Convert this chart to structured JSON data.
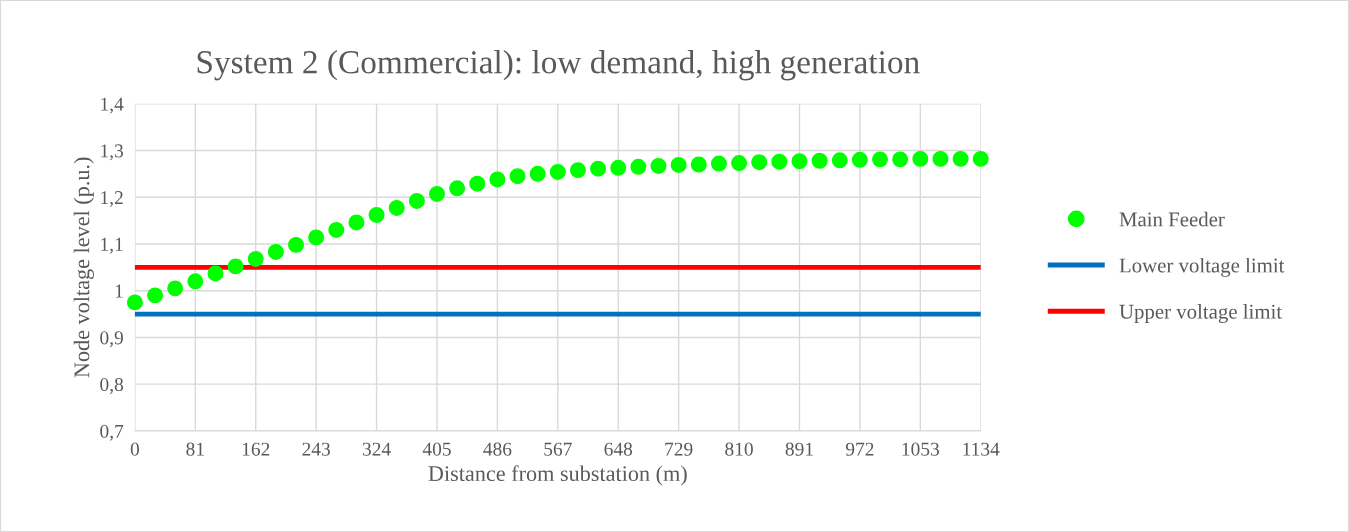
{
  "chart_data": {
    "type": "scatter",
    "title": "System 2 (Commercial): low demand, high generation",
    "xlabel": "Distance from substation (m)",
    "ylabel": "Node voltage level (p.u.)",
    "xlim": [
      0,
      1134
    ],
    "xticks": [
      0,
      81,
      162,
      243,
      324,
      405,
      486,
      567,
      648,
      729,
      810,
      891,
      972,
      1053,
      1134
    ],
    "ylim": [
      0.7,
      1.4
    ],
    "yticks": [
      {
        "value": 0.7,
        "label": "0,7"
      },
      {
        "value": 0.8,
        "label": "0,8"
      },
      {
        "value": 0.9,
        "label": "0,9"
      },
      {
        "value": 1.0,
        "label": "1"
      },
      {
        "value": 1.1,
        "label": "1,1"
      },
      {
        "value": 1.2,
        "label": "1,2"
      },
      {
        "value": 1.3,
        "label": "1,3"
      },
      {
        "value": 1.4,
        "label": "1,4"
      }
    ],
    "grid": true,
    "legend": "right",
    "series": [
      {
        "name": "Main Feeder",
        "marker": "circle",
        "color": "#00ff00",
        "x": [
          0,
          27,
          54,
          81,
          108,
          135,
          162,
          189,
          216,
          243,
          270,
          297,
          324,
          351,
          378,
          405,
          432,
          459,
          486,
          513,
          540,
          567,
          594,
          621,
          648,
          675,
          702,
          729,
          756,
          783,
          810,
          837,
          864,
          891,
          918,
          945,
          972,
          999,
          1026,
          1053,
          1080,
          1107,
          1134
        ],
        "values": [
          0.975,
          0.99,
          1.005,
          1.02,
          1.037,
          1.052,
          1.068,
          1.083,
          1.098,
          1.114,
          1.13,
          1.146,
          1.162,
          1.177,
          1.192,
          1.207,
          1.219,
          1.229,
          1.238,
          1.245,
          1.25,
          1.254,
          1.258,
          1.261,
          1.263,
          1.265,
          1.267,
          1.269,
          1.27,
          1.272,
          1.273,
          1.275,
          1.276,
          1.277,
          1.278,
          1.279,
          1.28,
          1.281,
          1.281,
          1.282,
          1.282,
          1.282,
          1.282
        ]
      },
      {
        "name": "Lower voltage limit",
        "type": "line",
        "marker": "none",
        "color": "#0070c0",
        "x": [
          0,
          1134
        ],
        "values": [
          0.95,
          0.95
        ]
      },
      {
        "name": "Upper voltage limit",
        "type": "line",
        "marker": "none",
        "color": "#ff0000",
        "x": [
          0,
          1134
        ],
        "values": [
          1.05,
          1.05
        ]
      }
    ]
  }
}
